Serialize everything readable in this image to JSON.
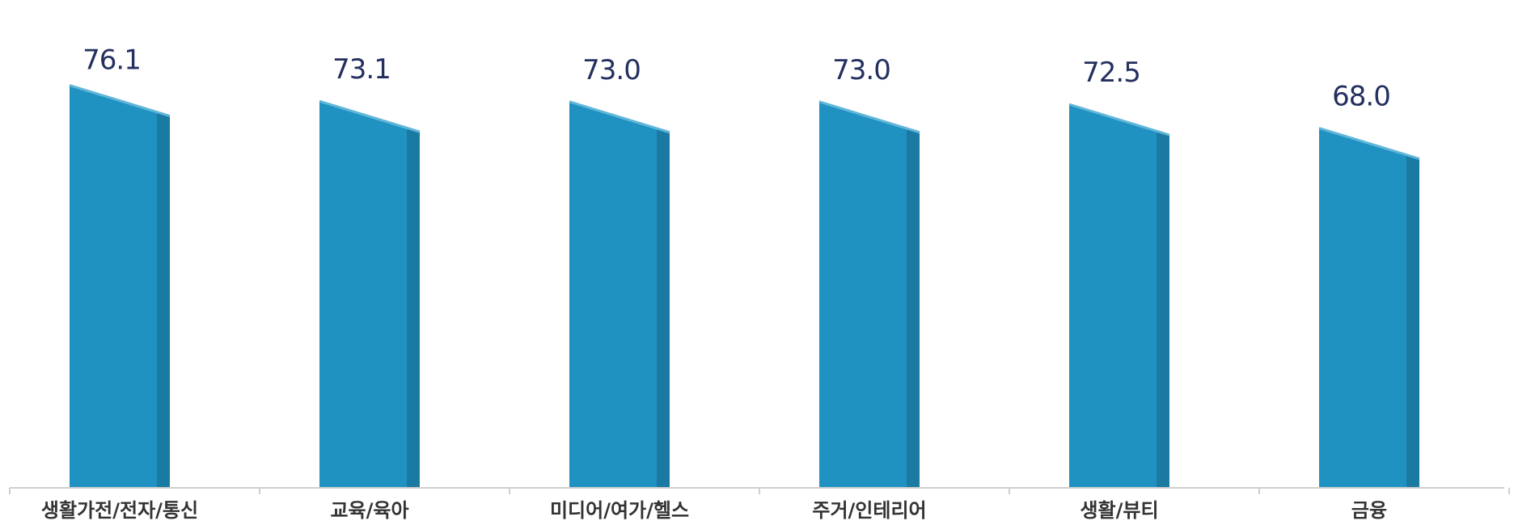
{
  "chart_data": {
    "type": "bar",
    "categories": [
      "생활가전/전자/통신",
      "교육/육아",
      "미디어/여가/헬스",
      "주거/인테리어",
      "생활/뷰티",
      "금융"
    ],
    "values": [
      76.1,
      73.1,
      73.0,
      73.0,
      72.5,
      68.0
    ],
    "value_labels": [
      "76.1",
      "73.1",
      "73.0",
      "73.0",
      "72.5",
      "68.0"
    ],
    "title": "",
    "xlabel": "",
    "ylabel": "",
    "ylim": [
      0,
      80
    ],
    "grid": false,
    "legend": "none",
    "colors": {
      "bar_face": "#2092c2",
      "bar_side": "#1a7aa1",
      "bar_top": "#62b6da",
      "value_text": "#23305f",
      "category_text": "#333333",
      "axis": "#cfcfcf"
    }
  }
}
